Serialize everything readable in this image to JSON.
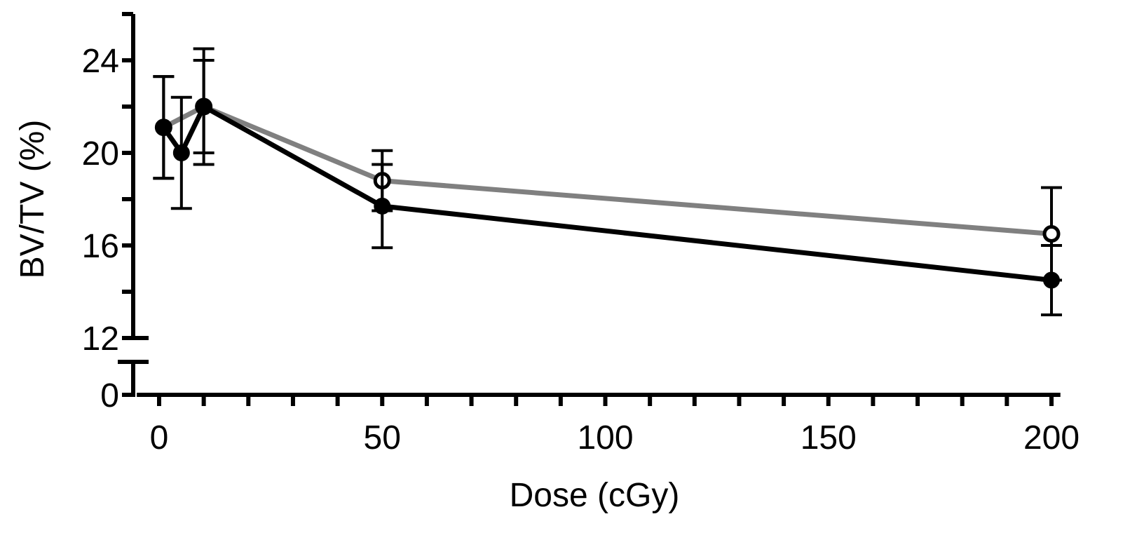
{
  "chart_data": {
    "type": "line",
    "title": "",
    "xlabel": "Dose (cGy)",
    "ylabel": "BV/TV (%)",
    "xlim": [
      -5,
      202
    ],
    "x_ticks": [
      {
        "value": 0,
        "label": "0"
      },
      {
        "value": 50,
        "label": "50"
      },
      {
        "value": 100,
        "label": "100"
      },
      {
        "value": 150,
        "label": "150"
      },
      {
        "value": 200,
        "label": "200"
      }
    ],
    "x_minor_step": 10,
    "y_axis_broken": true,
    "y_lower_segment": {
      "ylim": [
        0,
        2
      ],
      "ticks": [
        {
          "value": 0,
          "label": "0"
        }
      ]
    },
    "y_upper_segment": {
      "ylim": [
        12,
        26
      ],
      "ticks": [
        {
          "value": 12,
          "label": "12"
        },
        {
          "value": 16,
          "label": "16"
        },
        {
          "value": 20,
          "label": "20"
        },
        {
          "value": 24,
          "label": "24"
        }
      ],
      "minor_step": 2
    },
    "legend": "none",
    "grid": false,
    "series": [
      {
        "marker": "open-circle",
        "color": "#808080",
        "x": [
          1,
          10,
          50,
          200
        ],
        "y": [
          21.1,
          22.0,
          18.8,
          16.5
        ],
        "error": [
          2.2,
          2.0,
          1.3,
          2.0
        ]
      },
      {
        "marker": "filled-circle",
        "color": "#000000",
        "x": [
          1,
          5,
          10,
          50,
          200
        ],
        "y": [
          21.1,
          20.0,
          22.0,
          17.7,
          14.5
        ],
        "error": [
          2.2,
          2.4,
          2.5,
          1.8,
          1.5
        ]
      }
    ]
  }
}
